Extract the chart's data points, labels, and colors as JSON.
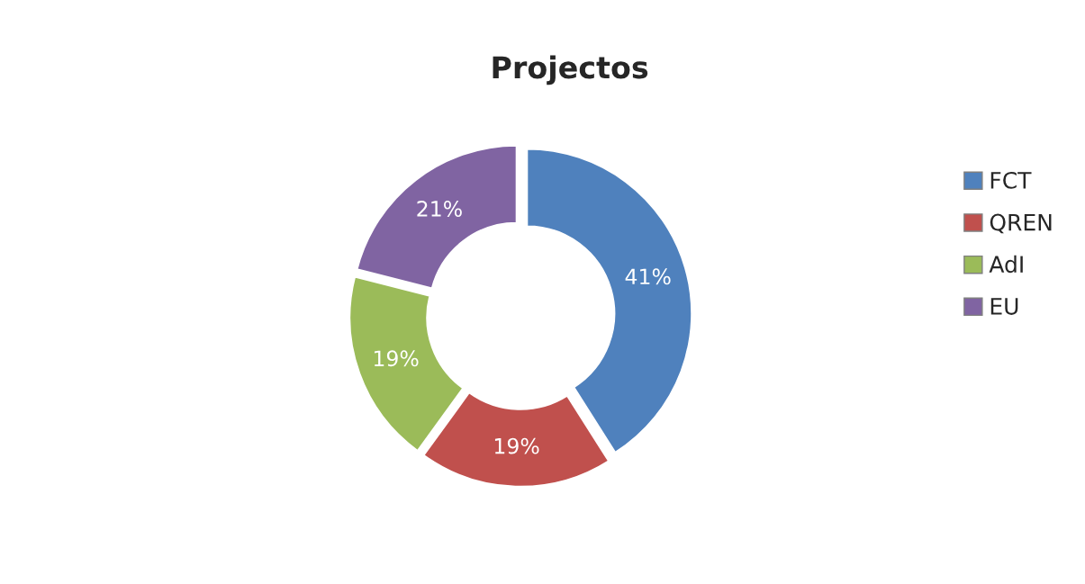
{
  "chart_data": {
    "type": "donut",
    "title": "Projectos",
    "categories": [
      "FCT",
      "QREN",
      "AdI",
      "EU"
    ],
    "values": [
      41,
      19,
      19,
      21
    ],
    "colors": [
      "#4f81bd",
      "#c0504d",
      "#9bbb59",
      "#8064a2"
    ],
    "value_labels": [
      "41%",
      "19%",
      "19%",
      "21%"
    ],
    "legend": "right"
  }
}
